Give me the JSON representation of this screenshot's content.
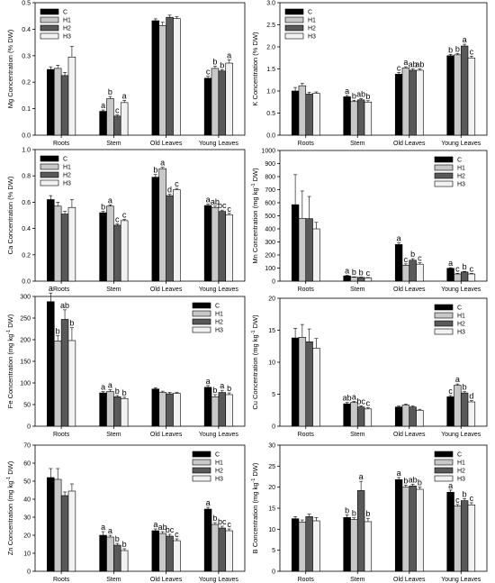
{
  "legend_labels": [
    "C",
    "H1",
    "H2",
    "H3"
  ],
  "colors": {
    "C": "#000000",
    "H1": "#c8c8c8",
    "H2": "#595959",
    "H3": "#f2f2f2",
    "axis": "#000000"
  },
  "chart_data": [
    {
      "type": "bar",
      "ylabel": "Mg Concentration (% DW)",
      "categories": [
        "Roots",
        "Stem",
        "Old Leaves",
        "Young Leaves"
      ],
      "ylim": [
        0,
        0.5
      ],
      "yticks": [
        "0.0",
        "0.1",
        "0.2",
        "0.3",
        "0.4",
        "0.5"
      ],
      "grid": false,
      "legend": "top-left",
      "series": [
        {
          "name": "C",
          "values": [
            0.248,
            0.09,
            0.432,
            0.215
          ]
        },
        {
          "name": "H1",
          "values": [
            0.252,
            0.138,
            0.414,
            0.252
          ]
        },
        {
          "name": "H2",
          "values": [
            0.225,
            0.072,
            0.445,
            0.242
          ]
        },
        {
          "name": "H3",
          "values": [
            0.295,
            0.123,
            0.44,
            0.272
          ]
        }
      ],
      "errors": [
        [
          0.01,
          0.005,
          0.007,
          0.007
        ],
        [
          0.012,
          0.008,
          0.012,
          0.008
        ],
        [
          0.012,
          0.004,
          0.008,
          0.005
        ],
        [
          0.04,
          0.008,
          0.007,
          0.012
        ]
      ],
      "annotations": [
        [
          "",
          "a",
          "",
          "c"
        ],
        [
          "",
          "b",
          "",
          "b"
        ],
        [
          "",
          "c",
          "",
          "b"
        ],
        [
          "",
          "a",
          "",
          "a"
        ]
      ]
    },
    {
      "type": "bar",
      "ylabel": "K Concentration (% DW)",
      "categories": [
        "Roots",
        "Stem",
        "Old Leaves",
        "Young Leaves"
      ],
      "ylim": [
        0,
        3.0
      ],
      "yticks": [
        "0.0",
        "0.5",
        "1.0",
        "1.5",
        "2.0",
        "2.5",
        "3.0"
      ],
      "grid": false,
      "legend": "top-left",
      "series": [
        {
          "name": "C",
          "values": [
            1.0,
            0.87,
            1.38,
            1.8
          ]
        },
        {
          "name": "H1",
          "values": [
            1.12,
            0.76,
            1.52,
            1.82
          ]
        },
        {
          "name": "H2",
          "values": [
            0.93,
            0.8,
            1.47,
            2.02
          ]
        },
        {
          "name": "H3",
          "values": [
            0.95,
            0.75,
            1.47,
            1.75
          ]
        }
      ],
      "errors": [
        [
          0.08,
          0.03,
          0.04,
          0.03
        ],
        [
          0.05,
          0.03,
          0.03,
          0.03
        ],
        [
          0.04,
          0.03,
          0.03,
          0.04
        ],
        [
          0.03,
          0.03,
          0.03,
          0.04
        ]
      ],
      "annotations": [
        [
          "",
          "a",
          "c",
          "b"
        ],
        [
          "",
          "b",
          "a",
          "b"
        ],
        [
          "",
          "ab",
          "ab",
          "a"
        ],
        [
          "",
          "b",
          "ab",
          "c"
        ]
      ]
    },
    {
      "type": "bar",
      "ylabel": "Ca Concentration (% DW)",
      "categories": [
        "Roots",
        "Stem",
        "Old Leaves",
        "Young Leaves"
      ],
      "ylim": [
        0,
        1.0
      ],
      "yticks": [
        "0.0",
        "0.2",
        "0.4",
        "0.6",
        "0.8",
        "1.0"
      ],
      "grid": false,
      "legend": "top-left",
      "series": [
        {
          "name": "C",
          "values": [
            0.62,
            0.52,
            0.79,
            0.575
          ]
        },
        {
          "name": "H1",
          "values": [
            0.57,
            0.57,
            0.855,
            0.56
          ]
        },
        {
          "name": "H2",
          "values": [
            0.51,
            0.425,
            0.65,
            0.53
          ]
        },
        {
          "name": "H3",
          "values": [
            0.56,
            0.46,
            0.695,
            0.505
          ]
        }
      ],
      "errors": [
        [
          0.03,
          0.01,
          0.02,
          0.01
        ],
        [
          0.03,
          0.01,
          0.01,
          0.01
        ],
        [
          0.02,
          0.01,
          0.01,
          0.01
        ],
        [
          0.06,
          0.01,
          0.01,
          0.01
        ]
      ],
      "annotations": [
        [
          "",
          "b",
          "b",
          "a"
        ],
        [
          "",
          "a",
          "a",
          "ab"
        ],
        [
          "",
          "c",
          "d",
          "bc"
        ],
        [
          "",
          "c",
          "c",
          "c"
        ]
      ]
    },
    {
      "type": "bar",
      "ylabel": "Mn Concentration (mg kg-1 DW)",
      "categories": [
        "Roots",
        "Stem",
        "Old Leaves",
        "Young Leaves"
      ],
      "ylim": [
        0,
        1000
      ],
      "yticks": [
        "0",
        "100",
        "200",
        "300",
        "400",
        "500",
        "600",
        "700",
        "800",
        "900",
        "1000"
      ],
      "grid": false,
      "legend": "top-right",
      "series": [
        {
          "name": "C",
          "values": [
            585,
            40,
            280,
            98
          ]
        },
        {
          "name": "H1",
          "values": [
            480,
            30,
            122,
            55
          ]
        },
        {
          "name": "H2",
          "values": [
            478,
            28,
            160,
            70
          ]
        },
        {
          "name": "H3",
          "values": [
            400,
            25,
            130,
            55
          ]
        }
      ],
      "errors": [
        [
          230,
          4,
          12,
          5
        ],
        [
          210,
          3,
          10,
          5
        ],
        [
          170,
          3,
          12,
          5
        ],
        [
          50,
          3,
          10,
          4
        ]
      ],
      "annotations": [
        [
          "",
          "a",
          "a",
          "a"
        ],
        [
          "",
          "b",
          "c",
          "c"
        ],
        [
          "",
          "b",
          "b",
          "b"
        ],
        [
          "",
          "c",
          "c",
          "c"
        ]
      ]
    },
    {
      "type": "bar",
      "ylabel": "Fe Concentration (mg kg-1 DW)",
      "categories": [
        "Roots",
        "Stem",
        "Old Leaves",
        "Young Leaves"
      ],
      "ylim": [
        0,
        300
      ],
      "yticks": [
        "0",
        "50",
        "100",
        "150",
        "200",
        "250",
        "300"
      ],
      "grid": false,
      "legend": "top-right",
      "series": [
        {
          "name": "C",
          "values": [
            288,
            77,
            86,
            90
          ]
        },
        {
          "name": "H1",
          "values": [
            197,
            80,
            78,
            68
          ]
        },
        {
          "name": "H2",
          "values": [
            247,
            68,
            75,
            78
          ]
        },
        {
          "name": "H3",
          "values": [
            198,
            64,
            76,
            73
          ]
        }
      ],
      "errors": [
        [
          20,
          3,
          3,
          4
        ],
        [
          12,
          4,
          3,
          5
        ],
        [
          22,
          3,
          3,
          5
        ],
        [
          30,
          3,
          2,
          4
        ]
      ],
      "annotations": [
        [
          "a",
          "a",
          "",
          "a"
        ],
        [
          "b",
          "a",
          "",
          "b"
        ],
        [
          "ab",
          "b",
          "",
          "a"
        ],
        [
          "b",
          "b",
          "",
          "b"
        ]
      ]
    },
    {
      "type": "bar",
      "ylabel": "Cu Concentration (mg kg-1 DW)",
      "categories": [
        "Roots",
        "Stem",
        "Old Leaves",
        "Young Leaves"
      ],
      "ylim": [
        0,
        20
      ],
      "yticks": [
        "0",
        "5",
        "10",
        "15",
        "20"
      ],
      "grid": false,
      "legend": "top-right",
      "series": [
        {
          "name": "C",
          "values": [
            13.8,
            3.5,
            3.0,
            4.6
          ]
        },
        {
          "name": "H1",
          "values": [
            13.9,
            3.7,
            3.3,
            6.4
          ]
        },
        {
          "name": "H2",
          "values": [
            13.2,
            3.0,
            3.0,
            5.2
          ]
        },
        {
          "name": "H3",
          "values": [
            12.2,
            2.7,
            2.5,
            3.8
          ]
        }
      ],
      "errors": [
        [
          1.5,
          0.2,
          0.15,
          0.2
        ],
        [
          2.0,
          0.2,
          0.15,
          0.2
        ],
        [
          2.0,
          0.2,
          0.15,
          0.2
        ],
        [
          1.5,
          0.2,
          0.15,
          0.2
        ]
      ],
      "annotations": [
        [
          "",
          "ab",
          "",
          "c"
        ],
        [
          "",
          "a",
          "",
          "a"
        ],
        [
          "",
          "bc",
          "",
          "b"
        ],
        [
          "",
          "c",
          "",
          "d"
        ]
      ]
    },
    {
      "type": "bar",
      "ylabel": "Zn Concentration (mg kg-1 DW)",
      "categories": [
        "Roots",
        "Stem",
        "Old Leaves",
        "Young Leaves"
      ],
      "ylim": [
        0,
        70
      ],
      "yticks": [
        "0",
        "10",
        "20",
        "30",
        "40",
        "50",
        "60",
        "70"
      ],
      "grid": false,
      "legend": "top-right",
      "series": [
        {
          "name": "C",
          "values": [
            52,
            20,
            22.5,
            34.5
          ]
        },
        {
          "name": "H1",
          "values": [
            51,
            19,
            21,
            26
          ]
        },
        {
          "name": "H2",
          "values": [
            42,
            14.5,
            19.5,
            24
          ]
        },
        {
          "name": "H3",
          "values": [
            44.5,
            11.5,
            17,
            22.5
          ]
        }
      ],
      "errors": [
        [
          5,
          2,
          1,
          1
        ],
        [
          6,
          1,
          1,
          1
        ],
        [
          2,
          1,
          1,
          1
        ],
        [
          4,
          1,
          1,
          1
        ]
      ],
      "annotations": [
        [
          "",
          "a",
          "a",
          "a"
        ],
        [
          "",
          "a",
          "ab",
          "b"
        ],
        [
          "",
          "b",
          "bc",
          "bc"
        ],
        [
          "",
          "b",
          "c",
          "c"
        ]
      ]
    },
    {
      "type": "bar",
      "ylabel": "B Concentration (mg kg-1 DW)",
      "categories": [
        "Roots",
        "Stem",
        "Old Leaves",
        "Young Leaves"
      ],
      "ylim": [
        0,
        30
      ],
      "yticks": [
        "0",
        "5",
        "10",
        "15",
        "20",
        "25",
        "30"
      ],
      "grid": false,
      "legend": "top-right",
      "series": [
        {
          "name": "C",
          "values": [
            12.5,
            12.8,
            21.8,
            18.8
          ]
        },
        {
          "name": "H1",
          "values": [
            11.7,
            12.3,
            20.0,
            15.5
          ]
        },
        {
          "name": "H2",
          "values": [
            13.0,
            19.2,
            20.3,
            16.8
          ]
        },
        {
          "name": "H3",
          "values": [
            12.0,
            11.8,
            19.5,
            15.8
          ]
        }
      ],
      "errors": [
        [
          0.5,
          0.6,
          0.5,
          0.5
        ],
        [
          0.5,
          0.4,
          0.5,
          0.4
        ],
        [
          0.6,
          2.2,
          0.4,
          0.5
        ],
        [
          0.8,
          0.8,
          0.5,
          0.5
        ]
      ],
      "annotations": [
        [
          "",
          "b",
          "a",
          "a"
        ],
        [
          "",
          "b",
          "b",
          "c"
        ],
        [
          "",
          "a",
          "ab",
          "b"
        ],
        [
          "",
          "b",
          "b",
          "c"
        ]
      ]
    }
  ]
}
